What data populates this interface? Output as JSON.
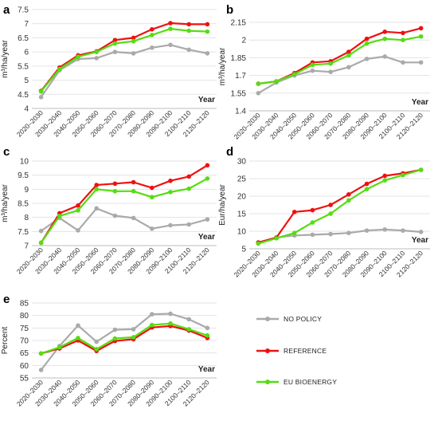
{
  "legend": [
    {
      "key": "no_policy",
      "label": "NO POLICY",
      "color": "#aaaaaa"
    },
    {
      "key": "reference",
      "label": "REFERENCE",
      "color": "#ee1111"
    },
    {
      "key": "eu_bioenergy",
      "label": "EU BIOENERGY",
      "color": "#55dd11"
    }
  ],
  "chart_data": [
    {
      "id": "a",
      "letter": "a",
      "type": "line",
      "categories": [
        "2020–2030",
        "2030–2040",
        "2040–2050",
        "2050–2060",
        "2060–2070",
        "2070–2080",
        "2080–2090",
        "2090–2100",
        "2100–2110",
        "2120–2120"
      ],
      "ylabel": "m³/ha/year",
      "xlabel": "Year",
      "ylim": [
        4,
        7.5
      ],
      "yticks": [
        "4",
        "4.5",
        "5",
        "5.5",
        "6",
        "6.5",
        "7",
        "7.5"
      ],
      "series": [
        {
          "key": "no_policy",
          "values": [
            4.4,
            5.35,
            5.75,
            5.78,
            6.0,
            5.95,
            6.15,
            6.25,
            6.08,
            5.95
          ]
        },
        {
          "key": "reference",
          "values": [
            4.62,
            5.45,
            5.88,
            6.02,
            6.42,
            6.5,
            6.8,
            7.02,
            6.98,
            6.98
          ]
        },
        {
          "key": "eu_bioenergy",
          "values": [
            4.6,
            5.4,
            5.83,
            6.0,
            6.3,
            6.38,
            6.6,
            6.82,
            6.75,
            6.72
          ]
        }
      ]
    },
    {
      "id": "b",
      "letter": "b",
      "type": "line",
      "categories": [
        "2020–2030",
        "2030–2040",
        "2040–2050",
        "2050–2060",
        "2060–2070",
        "2070–2080",
        "2080–2090",
        "2090–2100",
        "2100–2110",
        "2120–2120"
      ],
      "ylabel": "m³/ha/year",
      "xlabel": "Year",
      "ylim": [
        1.4,
        2.15
      ],
      "yticks": [
        "1.4",
        "1.55",
        "1.7",
        "1.85",
        "2",
        "2.15"
      ],
      "series": [
        {
          "key": "no_policy",
          "values": [
            1.55,
            1.64,
            1.7,
            1.74,
            1.73,
            1.77,
            1.84,
            1.86,
            1.81,
            1.81
          ]
        },
        {
          "key": "reference",
          "values": [
            1.63,
            1.65,
            1.72,
            1.81,
            1.82,
            1.9,
            2.01,
            2.07,
            2.06,
            2.1
          ]
        },
        {
          "key": "eu_bioenergy",
          "values": [
            1.63,
            1.65,
            1.71,
            1.79,
            1.8,
            1.87,
            1.97,
            2.01,
            2.0,
            2.03
          ]
        }
      ]
    },
    {
      "id": "c",
      "letter": "c",
      "type": "line",
      "categories": [
        "2020–2030",
        "2030–2040",
        "2040–2050",
        "2050–2060",
        "2060–2070",
        "2070–2080",
        "2080–2090",
        "2090–2100",
        "2100–2110",
        "2120–2120"
      ],
      "ylabel": "m³/ha/year",
      "xlabel": "Year",
      "ylim": [
        7,
        10
      ],
      "yticks": [
        "7",
        "7.5",
        "8",
        "8.5",
        "9",
        "9.5",
        "10"
      ],
      "series": [
        {
          "key": "no_policy",
          "values": [
            7.52,
            7.98,
            7.54,
            8.32,
            8.06,
            7.98,
            7.6,
            7.72,
            7.75,
            7.93
          ]
        },
        {
          "key": "reference",
          "values": [
            7.1,
            8.15,
            8.42,
            9.15,
            9.2,
            9.25,
            9.05,
            9.3,
            9.45,
            9.85
          ]
        },
        {
          "key": "eu_bioenergy",
          "values": [
            7.1,
            8.05,
            8.25,
            9.0,
            8.93,
            8.93,
            8.72,
            8.9,
            9.02,
            9.38
          ]
        }
      ]
    },
    {
      "id": "d",
      "letter": "d",
      "type": "line",
      "categories": [
        "2020–2030",
        "2030–2040",
        "2040–2050",
        "2050–2060",
        "2060–2070",
        "2070–2080",
        "2080–2090",
        "2090–2100",
        "2100–2110",
        "2120–2120"
      ],
      "ylabel": "Eur/ha/year",
      "xlabel": "Year",
      "ylim": [
        5,
        30
      ],
      "yticks": [
        "5",
        "10",
        "15",
        "20",
        "25",
        "30"
      ],
      "series": [
        {
          "key": "no_policy",
          "values": [
            6.8,
            8.2,
            8.8,
            9.0,
            9.2,
            9.5,
            10.2,
            10.5,
            10.2,
            9.8
          ]
        },
        {
          "key": "reference",
          "values": [
            6.8,
            8.2,
            15.5,
            16.0,
            17.5,
            20.5,
            23.5,
            25.8,
            26.5,
            27.5
          ]
        },
        {
          "key": "eu_bioenergy",
          "values": [
            6.5,
            8.0,
            9.5,
            12.5,
            15.0,
            18.8,
            22.0,
            24.5,
            26.0,
            27.5
          ]
        }
      ]
    },
    {
      "id": "e",
      "letter": "e",
      "type": "line",
      "categories": [
        "2020–2030",
        "2030–2040",
        "2040–2050",
        "2050–2060",
        "2060–2070",
        "2070–2080",
        "2080–2090",
        "2090–2100",
        "2100–2110",
        "2120–2120"
      ],
      "ylabel": "Percent",
      "xlabel": "Year",
      "ylim": [
        55,
        85
      ],
      "yticks": [
        "55",
        "60",
        "65",
        "70",
        "75",
        "80",
        "85"
      ],
      "series": [
        {
          "key": "no_policy",
          "values": [
            58.2,
            67.8,
            76.0,
            69.5,
            74.3,
            74.5,
            80.5,
            80.7,
            78.5,
            75.0
          ]
        },
        {
          "key": "reference",
          "values": [
            64.8,
            66.8,
            70.0,
            65.8,
            69.8,
            70.5,
            75.2,
            75.8,
            74.0,
            71.0
          ]
        },
        {
          "key": "eu_bioenergy",
          "values": [
            64.8,
            67.3,
            71.0,
            66.5,
            70.8,
            71.3,
            76.2,
            76.8,
            74.5,
            72.0
          ]
        }
      ]
    }
  ]
}
